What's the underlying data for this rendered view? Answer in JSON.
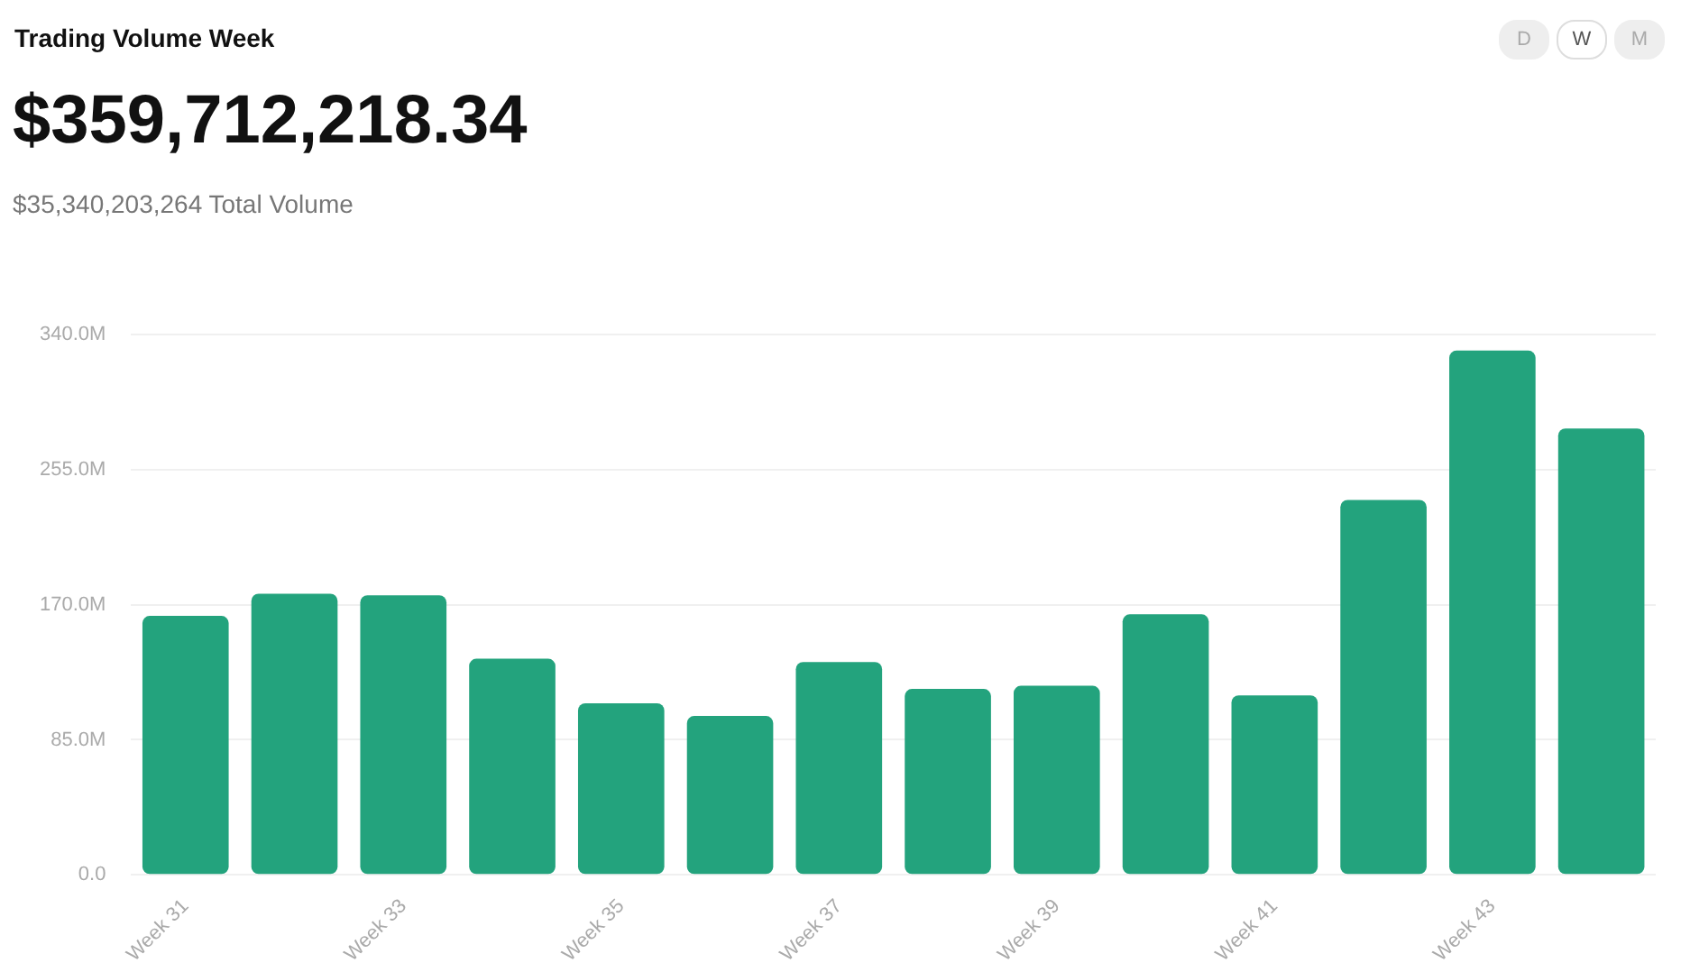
{
  "chart_data": {
    "type": "bar",
    "title": "Trading Volume Week",
    "subtitle": "$359,712,218.34",
    "annotations": [
      "$35,340,203,264 Total Volume",
      "D",
      "W",
      "M"
    ],
    "categories": [
      "Week 31",
      null,
      "Week 33",
      null,
      "Week 35",
      null,
      "Week 37",
      null,
      "Week 39",
      null,
      "Week 41",
      null,
      "Week 43",
      null
    ],
    "values": [
      163,
      177,
      176,
      136,
      108,
      100,
      134,
      117,
      119,
      164,
      113,
      236,
      330,
      281
    ],
    "color": "#23a37d",
    "ylim": [
      0,
      340
    ],
    "yticks": [
      {
        "value": 0,
        "label": "0.0"
      },
      {
        "value": 85,
        "label": "85.0M"
      },
      {
        "value": 170,
        "label": "170.0M"
      },
      {
        "value": 255,
        "label": "255.0M"
      },
      {
        "value": 340,
        "label": "340.0M"
      }
    ],
    "grid": "y",
    "legend": false
  }
}
